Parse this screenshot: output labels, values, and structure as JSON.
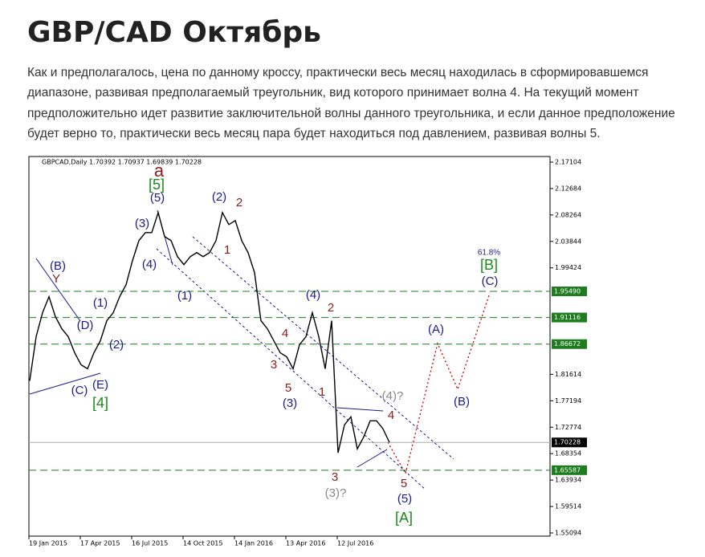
{
  "title": "GBP/CAD Октябрь",
  "paragraph": [
    "Как и предполагалось, цена по данному кроссу, практически весь месяц находилась в сформировавшемся",
    "диапазоне, развивая предполагаемый треугольник, вид которого принимает волна 4. На текущий момент",
    "предположительно идет развитие заключительной волны данного треугольника, и если данное предположение",
    "будет верно то, практически весь месяц пара будет находиться под давлением, развивая волны 5."
  ],
  "chart_data": {
    "type": "line",
    "header": "GBPCAD,Daily  1.70392 1.70937 1.69839 1.70228",
    "categories": [
      null,
      null,
      null,
      "19 Jan 2015",
      null,
      null,
      null,
      null,
      null,
      null,
      null,
      "17 Apr 2015",
      null,
      null,
      null,
      null,
      null,
      null,
      null,
      "16 Jul 2015",
      null,
      null,
      null,
      null,
      null,
      null,
      null,
      "14 Oct 2015",
      null,
      null,
      null,
      null,
      null,
      null,
      null,
      "14 Jan 2016",
      null,
      null,
      null,
      null,
      null,
      null,
      null,
      "13 Apr 2016",
      null,
      null,
      null,
      null,
      null,
      null,
      null,
      "12 Jul 2016",
      null,
      null,
      null,
      null,
      null
    ],
    "series": [
      {
        "color": "#000000",
        "values": [
          1.8054,
          1.8791,
          1.9192,
          1.946,
          1.9125,
          1.8924,
          1.8791,
          1.8522,
          1.8321,
          1.8254,
          1.8522,
          1.8723,
          1.9058,
          1.9192,
          1.946,
          1.9661,
          2.0063,
          2.0398,
          2.0532,
          2.0532,
          2.0867,
          2.0465,
          2.0398,
          2.013,
          1.9996,
          2.013,
          2.0197,
          2.013,
          2.0197,
          2.0398,
          2.0867,
          2.0666,
          2.0733,
          2.0398,
          2.0197,
          1.9862,
          1.9058,
          1.8924,
          1.8723,
          1.8522,
          1.8455,
          1.8254,
          1.8657,
          1.8791,
          1.9192,
          1.8791,
          1.8254,
          1.9058,
          1.6848,
          1.7317,
          1.7451,
          1.6915,
          1.7116,
          1.7384,
          1.7384,
          1.725,
          1.70228
        ]
      }
    ],
    "ylim": [
      1.54558,
      2.18042
    ],
    "yticks": [
      2.17104,
      2.12684,
      2.08264,
      2.03844,
      1.99424,
      1.81614,
      1.77194,
      1.72774,
      1.68354,
      1.63934,
      1.59514,
      1.55094
    ],
    "levels": [
      {
        "value": 1.9549,
        "label": "1.95490",
        "color": "#1e7d1e"
      },
      {
        "value": 1.91116,
        "label": "1.91116",
        "color": "#1e7d1e"
      },
      {
        "value": 1.86672,
        "label": "1.86672",
        "color": "#1e7d1e"
      },
      {
        "value": 1.65587,
        "label": "1.65587",
        "color": "#1e7d1e"
      },
      {
        "value": 1.70228,
        "label": "1.70228",
        "color": "#000000"
      }
    ],
    "annotations": [
      {
        "text": "a",
        "color": "#8b1a1a"
      },
      {
        "text": "[5]",
        "color": "#1a8a1a"
      },
      {
        "text": "(5)",
        "color": "#1a1a8c"
      },
      {
        "text": "(3)",
        "color": "#1a1a8c"
      },
      {
        "text": "(4)",
        "color": "#1a1a8c"
      },
      {
        "text": "(1)",
        "color": "#1a1a8c"
      },
      {
        "text": "(2)",
        "color": "#1a1a8c"
      },
      {
        "text": "2",
        "color": "#8b1a1a"
      },
      {
        "text": "1",
        "color": "#8b1a1a"
      },
      {
        "text": "(B)",
        "color": "#1a1a8c"
      },
      {
        "text": "Y",
        "color": "#8b1a1a"
      },
      {
        "text": "(1)",
        "color": "#1a1a8c"
      },
      {
        "text": "(D)",
        "color": "#1a1a8c"
      },
      {
        "text": "(2)",
        "color": "#1a1a8c"
      },
      {
        "text": "(C)",
        "color": "#1a1a8c"
      },
      {
        "text": "(E)",
        "color": "#1a1a8c"
      },
      {
        "text": "[4]",
        "color": "#1a8a1a"
      },
      {
        "text": "(4)",
        "color": "#1a1a8c"
      },
      {
        "text": "2",
        "color": "#8b1a1a"
      },
      {
        "text": "4",
        "color": "#8b1a1a"
      },
      {
        "text": "3",
        "color": "#8b1a1a"
      },
      {
        "text": "5",
        "color": "#8b1a1a"
      },
      {
        "text": "1",
        "color": "#8b1a1a"
      },
      {
        "text": "(3)",
        "color": "#1a1a8c"
      },
      {
        "text": "(4)?",
        "color": "#888888"
      },
      {
        "text": "4",
        "color": "#8b1a1a"
      },
      {
        "text": "3",
        "color": "#8b1a1a"
      },
      {
        "text": "(3)?",
        "color": "#888888"
      },
      {
        "text": "5",
        "color": "#8b1a1a"
      },
      {
        "text": "(5)",
        "color": "#1a1a8c"
      },
      {
        "text": "[A]",
        "color": "#1a8a1a"
      },
      {
        "text": "(A)",
        "color": "#1a1a8c"
      },
      {
        "text": "(B)",
        "color": "#1a1a8c"
      },
      {
        "text": "61.8%",
        "color": "#1a1a8c"
      },
      {
        "text": "[B]",
        "color": "#1a8a1a"
      },
      {
        "text": "(C)",
        "color": "#1a1a8c"
      }
    ]
  }
}
